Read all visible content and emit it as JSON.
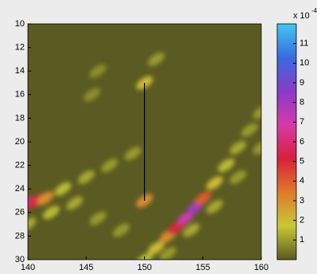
{
  "chart_data": {
    "type": "heatmap",
    "x": [
      150,
      151,
      152,
      152.7,
      153.5,
      154.3,
      155,
      156,
      157,
      158,
      159,
      160,
      152,
      154,
      156,
      158,
      160,
      140,
      140.8,
      141.5,
      143,
      145,
      147,
      149,
      140,
      142,
      144,
      146,
      148,
      150,
      150,
      151,
      146,
      145.5
    ],
    "y": [
      30,
      29,
      28,
      27.3,
      26.5,
      25.6,
      24.8,
      23.5,
      22,
      20.5,
      19,
      17.5,
      29.5,
      27.5,
      25.5,
      23,
      20.5,
      25.2,
      25,
      24.8,
      24,
      23,
      22,
      21,
      27,
      26,
      25.2,
      26.5,
      27.5,
      25,
      15,
      13,
      14,
      16
    ],
    "values": [
      1.5,
      2,
      3,
      5,
      7,
      8,
      4,
      2,
      1.5,
      1.2,
      1,
      1,
      1,
      1.2,
      1.2,
      1,
      1,
      6,
      5,
      3,
      1.5,
      1.2,
      1,
      1,
      1.2,
      1.5,
      1.2,
      1,
      1,
      3,
      2,
      1,
      0.8,
      0.8
    ],
    "line": {
      "x": [
        150,
        150
      ],
      "y": [
        15,
        25
      ],
      "color": "#000000"
    },
    "xlim": [
      140,
      160
    ],
    "xticks": [
      140,
      145,
      150,
      155,
      160
    ],
    "ylim": [
      30,
      10
    ],
    "yticks": [
      10,
      12,
      14,
      16,
      18,
      20,
      22,
      24,
      26,
      28,
      30
    ],
    "clim": [
      0,
      12
    ],
    "cticks": [
      1,
      2,
      3,
      4,
      5,
      6,
      7,
      8,
      9,
      10,
      11
    ],
    "colorbar_label": "x 10",
    "colorbar_exponent": "-4",
    "colormap": [
      "#5a5a22",
      "#c8c836",
      "#e07a2a",
      "#d8203a",
      "#d63aa8",
      "#8a3ac8",
      "#3a6ae0",
      "#40c8f0"
    ]
  }
}
